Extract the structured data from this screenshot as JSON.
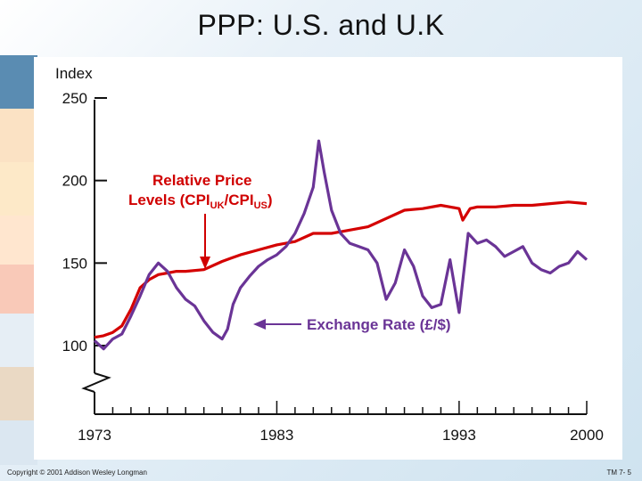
{
  "slide": {
    "title": "PPP: U.S. and U.K",
    "copyright": "Copyright © 2001 Addison Wesley Longman",
    "page_ref": "TM 7- 5"
  },
  "colors": {
    "price_series": "#d40000",
    "exchange_series": "#6a3496",
    "annotation": "#d00000",
    "exchange_label": "#6a3496"
  },
  "chart_data": {
    "type": "line",
    "ylabel": "Index",
    "xlim": [
      1973,
      2000
    ],
    "ylim": [
      100,
      250
    ],
    "xticks": [
      "1973",
      "1983",
      "1993",
      "2000"
    ],
    "yticks": [
      "100",
      "150",
      "200",
      "250"
    ],
    "axis_break": true,
    "grid": false,
    "annotations": {
      "price": {
        "line1": "Relative Price",
        "line2_prefix": "Levels (CPI",
        "sub1": "UK",
        "slash": "/CPI",
        "sub2": "US",
        "close": ")"
      },
      "exchange": "Exchange Rate (£/$)"
    },
    "series": [
      {
        "key": "relative_price_levels",
        "x": [
          1973,
          1973.5,
          1974,
          1974.5,
          1975,
          1975.5,
          1976,
          1976.5,
          1977,
          1977.5,
          1978,
          1979,
          1980,
          1980.5,
          1981,
          1982,
          1983,
          1984,
          1985,
          1986,
          1987,
          1988,
          1989,
          1990,
          1991,
          1992,
          1992.5,
          1993,
          1993.2,
          1993.6,
          1994,
          1995,
          1996,
          1997,
          1998,
          1999,
          2000
        ],
        "y": [
          105,
          106,
          108,
          112,
          122,
          135,
          140,
          143,
          144,
          145,
          145,
          146,
          151,
          153,
          155,
          158,
          161,
          163,
          168,
          168,
          170,
          172,
          177,
          182,
          183,
          185,
          184,
          183,
          176,
          183,
          184,
          184,
          185,
          185,
          186,
          187,
          186
        ]
      },
      {
        "key": "exchange_rate",
        "x": [
          1973,
          1973.5,
          1974,
          1974.5,
          1975,
          1975.5,
          1976,
          1976.5,
          1977,
          1977.5,
          1978,
          1978.5,
          1979,
          1979.5,
          1980,
          1980.3,
          1980.6,
          1981,
          1981.5,
          1982,
          1982.5,
          1983,
          1983.5,
          1984,
          1984.5,
          1985,
          1985.3,
          1985.6,
          1986,
          1986.5,
          1987,
          1987.5,
          1988,
          1988.5,
          1989,
          1989.5,
          1990,
          1990.5,
          1991,
          1991.5,
          1992,
          1992.5,
          1993,
          1993.5,
          1994,
          1994.5,
          1995,
          1995.5,
          1996,
          1996.5,
          1997,
          1997.5,
          1998,
          1998.5,
          1999,
          1999.5,
          2000
        ],
        "y": [
          103,
          98,
          104,
          107,
          118,
          130,
          143,
          150,
          145,
          135,
          128,
          124,
          115,
          108,
          104,
          110,
          125,
          135,
          142,
          148,
          152,
          155,
          160,
          168,
          180,
          196,
          224,
          205,
          182,
          168,
          162,
          160,
          158,
          150,
          128,
          138,
          158,
          148,
          130,
          123,
          125,
          152,
          120,
          168,
          162,
          164,
          160,
          154,
          157,
          160,
          150,
          146,
          144,
          148,
          150,
          157,
          152
        ]
      }
    ]
  }
}
